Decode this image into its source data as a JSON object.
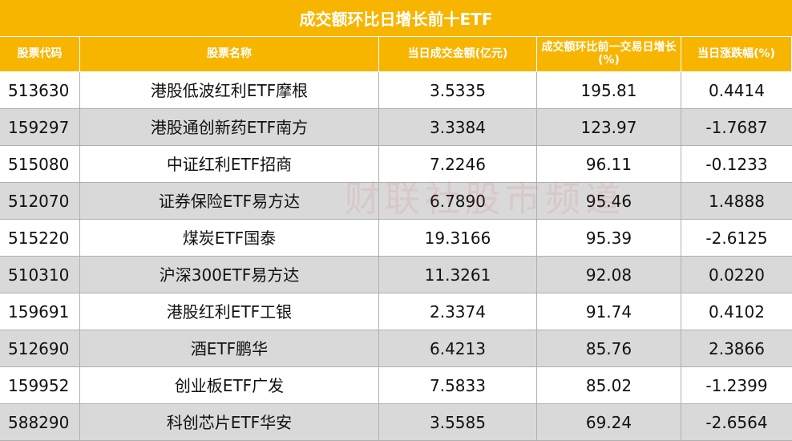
{
  "header": {
    "title": "成交额环比日增长前十ETF"
  },
  "watermark": "财联社股市频道",
  "table": {
    "columns": [
      "股票代码",
      "股票名称",
      "当日成交金额(亿元)",
      "成交额环比前一交易日增长(%)",
      "当日涨跌幅(%)"
    ],
    "rows": [
      [
        "513630",
        "港股低波红利ETF摩根",
        "3.5335",
        "195.81",
        "0.4414"
      ],
      [
        "159297",
        "港股通创新药ETF南方",
        "3.3384",
        "123.97",
        "-1.7687"
      ],
      [
        "515080",
        "中证红利ETF招商",
        "7.2246",
        "96.11",
        "-0.1233"
      ],
      [
        "512070",
        "证券保险ETF易方达",
        "6.7890",
        "95.46",
        "1.4888"
      ],
      [
        "515220",
        "煤炭ETF国泰",
        "19.3166",
        "95.39",
        "-2.6125"
      ],
      [
        "510310",
        "沪深300ETF易方达",
        "11.3261",
        "92.08",
        "0.0220"
      ],
      [
        "159691",
        "港股红利ETF工银",
        "2.3374",
        "91.74",
        "0.4102"
      ],
      [
        "512690",
        "酒ETF鹏华",
        "6.4213",
        "85.76",
        "2.3866"
      ],
      [
        "159952",
        "创业板ETF广发",
        "7.5833",
        "85.02",
        "-1.2399"
      ],
      [
        "588290",
        "科创芯片ETF华安",
        "3.5585",
        "69.24",
        "-2.6564"
      ]
    ]
  }
}
